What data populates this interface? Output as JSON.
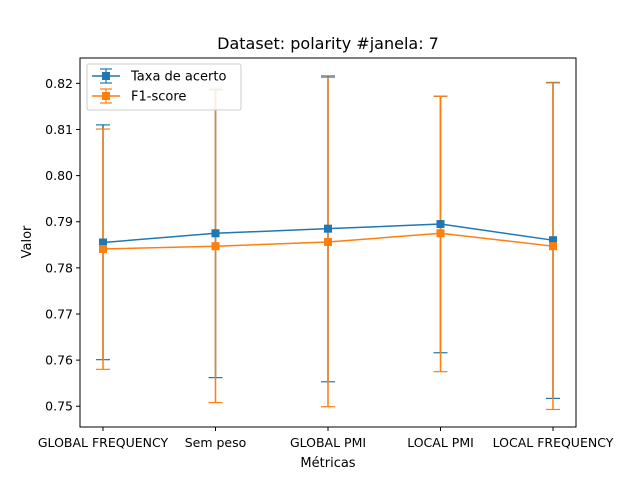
{
  "chart_data": {
    "type": "line",
    "title": "Dataset: polarity #janela: 7",
    "xlabel": "Métricas",
    "ylabel": "Valor",
    "categories": [
      "GLOBAL FREQUENCY",
      "Sem peso",
      "GLOBAL PMI",
      "LOCAL PMI",
      "LOCAL FREQUENCY"
    ],
    "ylim": [
      0.7455,
      0.8255
    ],
    "yticks": [
      0.75,
      0.76,
      0.77,
      0.78,
      0.79,
      0.8,
      0.81,
      0.82
    ],
    "ytick_labels": [
      "0.75",
      "0.76",
      "0.77",
      "0.78",
      "0.79",
      "0.80",
      "0.81",
      "0.82"
    ],
    "grid": false,
    "legend_position": "top-left",
    "series": [
      {
        "name": "Taxa de acerto",
        "color": "#1f77b4",
        "marker": "square",
        "values": [
          0.7855,
          0.7875,
          0.7885,
          0.7895,
          0.786
        ],
        "err_low": [
          0.7601,
          0.7562,
          0.7553,
          0.7616,
          0.7517
        ],
        "err_high": [
          0.811,
          0.8187,
          0.8216,
          0.8172,
          0.8202
        ]
      },
      {
        "name": "F1-score",
        "color": "#ff7f0e",
        "marker": "square",
        "values": [
          0.7841,
          0.7847,
          0.7856,
          0.7875,
          0.7847
        ],
        "err_low": [
          0.758,
          0.7508,
          0.7499,
          0.7575,
          0.7493
        ],
        "err_high": [
          0.8101,
          0.8186,
          0.8213,
          0.8172,
          0.8201
        ]
      }
    ]
  }
}
